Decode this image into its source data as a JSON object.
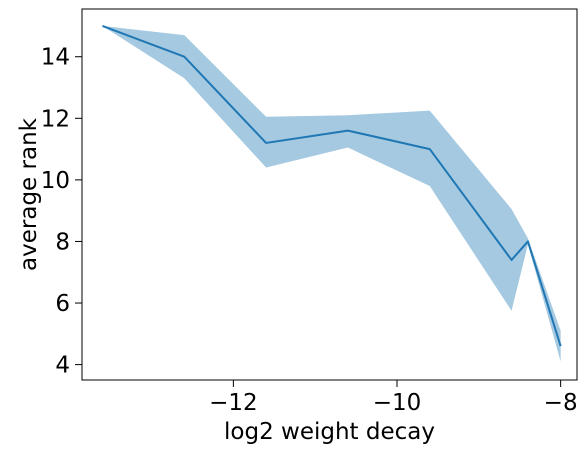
{
  "chart_data": {
    "type": "line",
    "title": "",
    "xlabel": "log2 weight decay",
    "ylabel": "average rank",
    "xlim": [
      -13.85,
      -7.8
    ],
    "ylim": [
      3.5,
      15.55
    ],
    "xticks": [
      {
        "value": -12,
        "label": "−12"
      },
      {
        "value": -10,
        "label": "−10"
      },
      {
        "value": -8,
        "label": "−8"
      }
    ],
    "yticks": [
      {
        "value": 4,
        "label": "4"
      },
      {
        "value": 6,
        "label": "6"
      },
      {
        "value": 8,
        "label": "8"
      },
      {
        "value": 10,
        "label": "10"
      },
      {
        "value": 12,
        "label": "12"
      },
      {
        "value": 14,
        "label": "14"
      }
    ],
    "grid": false,
    "legend": "none",
    "series": [
      {
        "color": "#1f77b4",
        "band_color": "#1f77b4",
        "band_opacity": 0.4,
        "x": [
          -13.6,
          -12.6,
          -11.6,
          -10.6,
          -9.6,
          -8.6,
          -8.4,
          -8.0
        ],
        "y": [
          15.0,
          14.0,
          11.2,
          11.6,
          11.0,
          7.4,
          8.0,
          4.6
        ],
        "lower": [
          15.0,
          13.3,
          10.4,
          11.05,
          9.8,
          5.75,
          7.9,
          4.1
        ],
        "upper": [
          15.0,
          14.7,
          12.05,
          12.1,
          12.25,
          9.05,
          8.1,
          5.1
        ]
      }
    ]
  }
}
